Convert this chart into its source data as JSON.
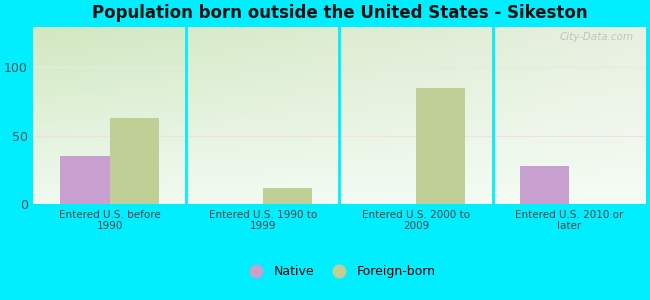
{
  "title": "Population born outside the United States - Sikeston",
  "categories": [
    "Entered U.S. before\n1990",
    "Entered U.S. 1990 to\n1999",
    "Entered U.S. 2000 to\n2009",
    "Entered U.S. 2010 or\nlater"
  ],
  "native_values": [
    35,
    0,
    0,
    28
  ],
  "foreign_values": [
    63,
    12,
    85,
    0
  ],
  "native_color": "#c8a0d0",
  "foreign_color": "#bfcf96",
  "background_color": "#00eeff",
  "ylim": [
    0,
    130
  ],
  "yticks": [
    0,
    50,
    100
  ],
  "bar_width": 0.32,
  "watermark": "City-Data.com",
  "legend_native": "Native",
  "legend_foreign": "Foreign-born",
  "grid_color_h100": "#e0ede0",
  "grid_color_h50": "#f5dde8",
  "vline_color": "#00eeff",
  "grad_top_left": "#d0e8c0",
  "grad_top_right": "#e8f0e0",
  "grad_bottom": "#f0faf0"
}
